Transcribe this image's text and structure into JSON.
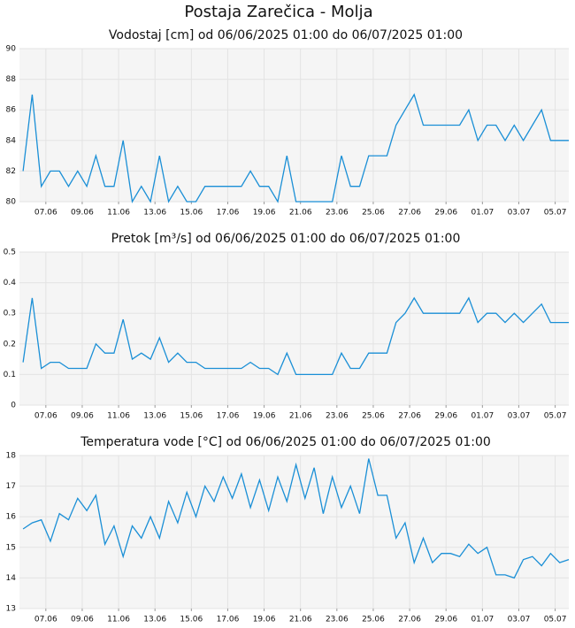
{
  "title": "Postaja Zarečica - Molja",
  "chart_data": [
    {
      "type": "line",
      "title": "Vodostaj [cm] od 06/06/2025 01:00 do 06/07/2025 01:00",
      "color": "#1a8fd6",
      "grid": true,
      "x": [
        5.75,
        6.25,
        6.75,
        7.25,
        7.75,
        8.25,
        8.75,
        9.25,
        9.75,
        10.25,
        10.75,
        11.25,
        11.75,
        12.25,
        12.75,
        13.25,
        13.75,
        14.25,
        14.75,
        15.25,
        15.75,
        16.25,
        16.75,
        17.25,
        17.75,
        18.25,
        18.75,
        19.25,
        19.75,
        20.25,
        20.75,
        21.25,
        21.75,
        22.25,
        22.75,
        23.25,
        23.75,
        24.25,
        24.75,
        25.25,
        25.75,
        26.25,
        26.75,
        27.25,
        27.75,
        28.25,
        28.75,
        29.25,
        29.75,
        30.25,
        30.75,
        31.25,
        31.75,
        32.25,
        32.75,
        33.25,
        33.75,
        34.25,
        34.75,
        35.25,
        35.75
      ],
      "values": [
        82,
        87,
        81,
        82,
        82,
        81,
        82,
        81,
        83,
        81,
        81,
        84,
        80,
        81,
        80,
        83,
        80,
        81,
        80,
        80,
        81,
        81,
        81,
        81,
        81,
        82,
        81,
        81,
        80,
        83,
        80,
        80,
        80,
        80,
        80,
        83,
        81,
        81,
        83,
        83,
        83,
        85,
        86,
        87,
        85,
        85,
        85,
        85,
        85,
        86,
        84,
        85,
        85,
        84,
        85,
        84,
        85,
        86,
        84,
        84,
        84
      ],
      "xlim": [
        5.55,
        35.75
      ],
      "ylim": [
        80,
        90
      ],
      "yticks": [
        80,
        82,
        84,
        86,
        88,
        90
      ],
      "xticks": [
        {
          "value": 7,
          "label": "07.06"
        },
        {
          "value": 9,
          "label": "09.06"
        },
        {
          "value": 11,
          "label": "11.06"
        },
        {
          "value": 13,
          "label": "13.06"
        },
        {
          "value": 15,
          "label": "15.06"
        },
        {
          "value": 17,
          "label": "17.06"
        },
        {
          "value": 19,
          "label": "19.06"
        },
        {
          "value": 21,
          "label": "21.06"
        },
        {
          "value": 23,
          "label": "23.06"
        },
        {
          "value": 25,
          "label": "25.06"
        },
        {
          "value": 27,
          "label": "27.06"
        },
        {
          "value": 29,
          "label": "29.06"
        },
        {
          "value": 31,
          "label": "01.07"
        },
        {
          "value": 33,
          "label": "03.07"
        },
        {
          "value": 35,
          "label": "05.07"
        }
      ]
    },
    {
      "type": "line",
      "title": "Pretok [m³/s] od 06/06/2025 01:00 do 06/07/2025 01:00",
      "color": "#1a8fd6",
      "grid": true,
      "x": [
        5.75,
        6.25,
        6.75,
        7.25,
        7.75,
        8.25,
        8.75,
        9.25,
        9.75,
        10.25,
        10.75,
        11.25,
        11.75,
        12.25,
        12.75,
        13.25,
        13.75,
        14.25,
        14.75,
        15.25,
        15.75,
        16.25,
        16.75,
        17.25,
        17.75,
        18.25,
        18.75,
        19.25,
        19.75,
        20.25,
        20.75,
        21.25,
        21.75,
        22.25,
        22.75,
        23.25,
        23.75,
        24.25,
        24.75,
        25.25,
        25.75,
        26.25,
        26.75,
        27.25,
        27.75,
        28.25,
        28.75,
        29.25,
        29.75,
        30.25,
        30.75,
        31.25,
        31.75,
        32.25,
        32.75,
        33.25,
        33.75,
        34.25,
        34.75,
        35.25,
        35.75
      ],
      "values": [
        0.14,
        0.35,
        0.12,
        0.14,
        0.14,
        0.12,
        0.12,
        0.12,
        0.2,
        0.17,
        0.17,
        0.28,
        0.15,
        0.17,
        0.15,
        0.22,
        0.14,
        0.17,
        0.14,
        0.14,
        0.12,
        0.12,
        0.12,
        0.12,
        0.12,
        0.14,
        0.12,
        0.12,
        0.1,
        0.17,
        0.1,
        0.1,
        0.1,
        0.1,
        0.1,
        0.17,
        0.12,
        0.12,
        0.17,
        0.17,
        0.17,
        0.27,
        0.3,
        0.35,
        0.3,
        0.3,
        0.3,
        0.3,
        0.3,
        0.35,
        0.27,
        0.3,
        0.3,
        0.27,
        0.3,
        0.27,
        0.3,
        0.33,
        0.27,
        0.27,
        0.27
      ],
      "xlim": [
        5.55,
        35.75
      ],
      "ylim": [
        0,
        0.5
      ],
      "yticks": [
        0,
        0.1,
        0.2,
        0.3,
        0.4,
        0.5
      ],
      "xticks": [
        {
          "value": 7,
          "label": "07.06"
        },
        {
          "value": 9,
          "label": "09.06"
        },
        {
          "value": 11,
          "label": "11.06"
        },
        {
          "value": 13,
          "label": "13.06"
        },
        {
          "value": 15,
          "label": "15.06"
        },
        {
          "value": 17,
          "label": "17.06"
        },
        {
          "value": 19,
          "label": "19.06"
        },
        {
          "value": 21,
          "label": "21.06"
        },
        {
          "value": 23,
          "label": "23.06"
        },
        {
          "value": 25,
          "label": "25.06"
        },
        {
          "value": 27,
          "label": "27.06"
        },
        {
          "value": 29,
          "label": "29.06"
        },
        {
          "value": 31,
          "label": "01.07"
        },
        {
          "value": 33,
          "label": "03.07"
        },
        {
          "value": 35,
          "label": "05.07"
        }
      ]
    },
    {
      "type": "line",
      "title": "Temperatura vode [°C] od 06/06/2025 01:00 do 06/07/2025 01:00",
      "color": "#1a8fd6",
      "grid": true,
      "x": [
        5.75,
        6.25,
        6.75,
        7.25,
        7.75,
        8.25,
        8.75,
        9.25,
        9.75,
        10.25,
        10.75,
        11.25,
        11.75,
        12.25,
        12.75,
        13.25,
        13.75,
        14.25,
        14.75,
        15.25,
        15.75,
        16.25,
        16.75,
        17.25,
        17.75,
        18.25,
        18.75,
        19.25,
        19.75,
        20.25,
        20.75,
        21.25,
        21.75,
        22.25,
        22.75,
        23.25,
        23.75,
        24.25,
        24.75,
        25.25,
        25.75,
        26.25,
        26.75,
        27.25,
        27.75,
        28.25,
        28.75,
        29.25,
        29.75,
        30.25,
        30.75,
        31.25,
        31.75,
        32.25,
        32.75,
        33.25,
        33.75,
        34.25,
        34.75,
        35.25,
        35.75
      ],
      "values": [
        15.6,
        15.8,
        15.9,
        15.2,
        16.1,
        15.9,
        16.6,
        16.2,
        16.7,
        15.1,
        15.7,
        14.7,
        15.7,
        15.3,
        16.0,
        15.3,
        16.5,
        15.8,
        16.8,
        16.0,
        17.0,
        16.5,
        17.3,
        16.6,
        17.4,
        16.3,
        17.2,
        16.2,
        17.3,
        16.5,
        17.7,
        16.6,
        17.6,
        16.1,
        17.3,
        16.3,
        17.0,
        16.1,
        17.9,
        16.7,
        16.7,
        15.3,
        15.8,
        14.5,
        15.3,
        14.5,
        14.8,
        14.8,
        14.7,
        15.1,
        14.8,
        15.0,
        14.1,
        14.1,
        14.0,
        14.6,
        14.7,
        14.4,
        14.8,
        14.5,
        14.6
      ],
      "xlim": [
        5.55,
        35.75
      ],
      "ylim": [
        13,
        18
      ],
      "yticks": [
        13,
        14,
        15,
        16,
        17,
        18
      ],
      "xticks": [
        {
          "value": 7,
          "label": "07.06"
        },
        {
          "value": 9,
          "label": "09.06"
        },
        {
          "value": 11,
          "label": "11.06"
        },
        {
          "value": 13,
          "label": "13.06"
        },
        {
          "value": 15,
          "label": "15.06"
        },
        {
          "value": 17,
          "label": "17.06"
        },
        {
          "value": 19,
          "label": "19.06"
        },
        {
          "value": 21,
          "label": "21.06"
        },
        {
          "value": 23,
          "label": "23.06"
        },
        {
          "value": 25,
          "label": "25.06"
        },
        {
          "value": 27,
          "label": "27.06"
        },
        {
          "value": 29,
          "label": "29.06"
        },
        {
          "value": 31,
          "label": "01.07"
        },
        {
          "value": 33,
          "label": "03.07"
        },
        {
          "value": 35,
          "label": "05.07"
        }
      ]
    }
  ]
}
